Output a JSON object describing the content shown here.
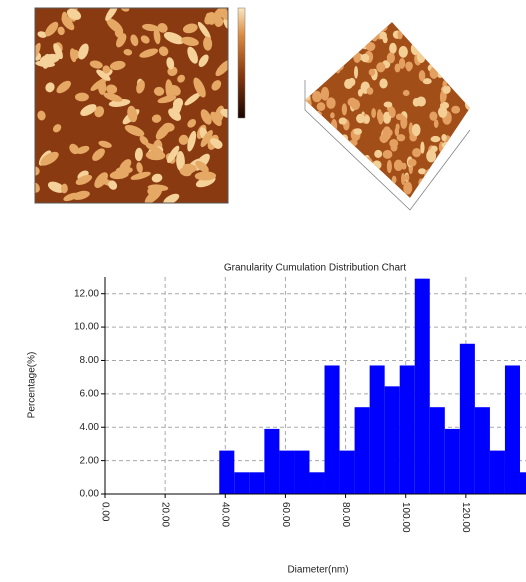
{
  "chart_data": {
    "type": "histogram",
    "title": "Granularity Cumulation Distribution  Chart",
    "x_label": "Diameter(nm)",
    "y_label": "Percentage(%)",
    "bins": [
      38,
      43,
      48,
      53,
      58,
      63,
      68,
      73,
      78,
      83,
      88,
      93,
      98,
      103,
      108,
      113,
      118,
      123,
      128,
      133,
      138,
      143
    ],
    "values": [
      2.6,
      1.3,
      1.3,
      3.9,
      2.6,
      2.6,
      1.3,
      7.7,
      2.6,
      5.2,
      7.7,
      6.45,
      7.7,
      12.9,
      5.2,
      3.9,
      9.0,
      5.2,
      2.6,
      7.7,
      1.3
    ],
    "color": "#0000ff",
    "xlim": [
      0,
      140
    ],
    "ylim": [
      0,
      13
    ],
    "xticks": [
      {
        "value": 0,
        "label": "0.00"
      },
      {
        "value": 20,
        "label": "20.00"
      },
      {
        "value": 40,
        "label": "40.00"
      },
      {
        "value": 60,
        "label": "60.00"
      },
      {
        "value": 80,
        "label": "80.00"
      },
      {
        "value": 100,
        "label": "100.00"
      },
      {
        "value": 120,
        "label": "120.00"
      }
    ],
    "yticks": [
      {
        "value": 0,
        "label": "0.00"
      },
      {
        "value": 2,
        "label": "2.00"
      },
      {
        "value": 4,
        "label": "4.00"
      },
      {
        "value": 6,
        "label": "6.00"
      },
      {
        "value": 8,
        "label": "8.00"
      },
      {
        "value": 10,
        "label": "10.00"
      },
      {
        "value": 12,
        "label": "12.00"
      }
    ],
    "grid": true
  }
}
